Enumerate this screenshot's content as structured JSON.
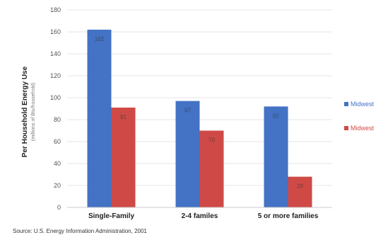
{
  "chart_data": {
    "type": "bar",
    "title": "",
    "ylabel": "Per Household Energy Use",
    "ylabel_sub": "(millions of Btu/household)",
    "ylim": [
      0,
      180
    ],
    "yticks": [
      "0",
      "20",
      "40",
      "60",
      "80",
      "100",
      "120",
      "140",
      "160",
      "180"
    ],
    "categories": [
      "Single-Family",
      "2-4 familes",
      "5 or more families"
    ],
    "series": [
      {
        "name": "Midwest",
        "color": "#4472c4",
        "values": [
          162,
          97,
          92
        ],
        "labels": [
          "162",
          "97",
          "92"
        ]
      },
      {
        "name": "Midwest",
        "color": "#cf4a46",
        "values": [
          91,
          70,
          28
        ],
        "labels": [
          "91",
          "70",
          "28"
        ]
      }
    ],
    "grid": true,
    "legend": "right"
  },
  "source": "Source: U.S. Energy Information Administration, 2001"
}
